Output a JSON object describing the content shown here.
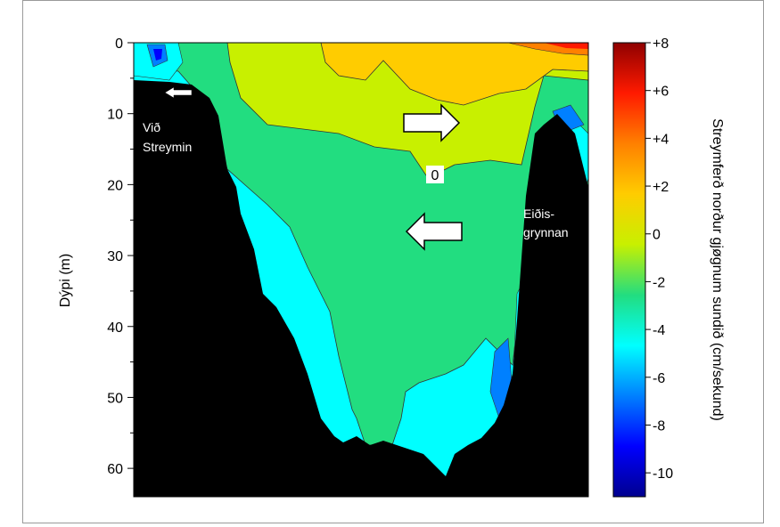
{
  "chart_data": {
    "type": "heatmap",
    "title": "",
    "ylabel": "Dýpi (m)",
    "xlabel": "",
    "yticks": [
      0,
      10,
      20,
      30,
      40,
      50,
      60
    ],
    "ylim": [
      0,
      64
    ],
    "ydirection": "depth increases downward",
    "colorbar": {
      "label": "Streymferð norður gjøgnum sundið (cm/sekund)",
      "ticks": [
        "+8",
        "+6",
        "+4",
        "+2",
        "0",
        "-2",
        "-4",
        "-6",
        "-8",
        "-10"
      ],
      "range": [
        -11,
        8
      ],
      "colors": [
        "#00008f",
        "#0000ff",
        "#0080ff",
        "#00ffff",
        "#22dd80",
        "#c8f000",
        "#ffcc00",
        "#ff8000",
        "#ff1a00",
        "#8f0000"
      ]
    },
    "annotations": {
      "left_label": "Við Streymin",
      "right_label": "Eiðis- grynnan",
      "zero_contour": "0"
    },
    "layers": {
      "surface_band": "-1 to +2 (yellow/orange)",
      "middle_band": "-2 to -1 (green)",
      "deep_band": "-5 to -3 (cyan)",
      "extremes": "up to +7 at surface right, -8 near right bank"
    },
    "arrows": [
      {
        "direction": "left",
        "meaning": "flow at Við Streymin"
      },
      {
        "direction": "right",
        "meaning": "surface northward flow"
      },
      {
        "direction": "left",
        "meaning": "deeper southward flow"
      }
    ]
  }
}
